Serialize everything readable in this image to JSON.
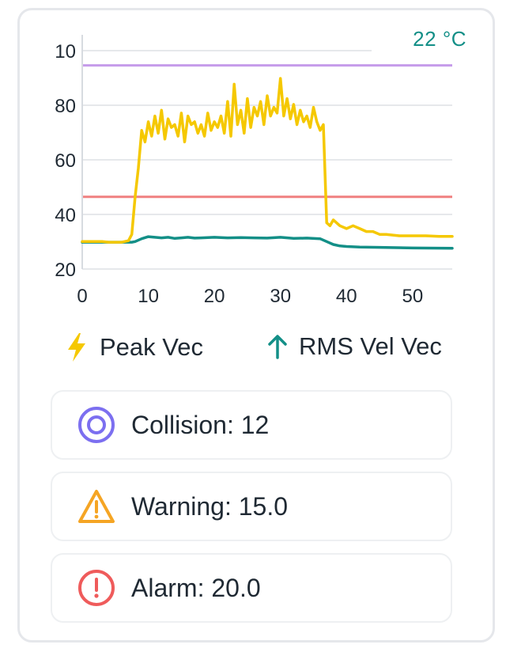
{
  "temperature": "22 °C",
  "legend": [
    {
      "label": "Peak Vec",
      "color": "#f5c800",
      "icon": "lightning-bolt-icon"
    },
    {
      "label": "RMS Vel Vec",
      "color": "#138f87",
      "icon": "arrow-up-icon"
    }
  ],
  "status": [
    {
      "text": "Collision: 12",
      "color": "#7c6ff0",
      "icon": "target-icon"
    },
    {
      "text": "Warning: 15.0",
      "color": "#f5a524",
      "icon": "warning-triangle-icon"
    },
    {
      "text": "Alarm: 20.0",
      "color": "#ef5b5b",
      "icon": "alert-circle-icon"
    }
  ],
  "chart_data": {
    "type": "line",
    "x_ticks": [
      "0",
      "10",
      "20",
      "30",
      "40",
      "50"
    ],
    "y_ticks": [
      "10",
      "80",
      "60",
      "40",
      "20"
    ],
    "xlim": [
      0,
      56
    ],
    "ylim": [
      20,
      100
    ],
    "threshold_lines": [
      {
        "value": 90.5,
        "color": "#c59bea"
      },
      {
        "value": 45,
        "color": "#f08080"
      }
    ],
    "series": [
      {
        "name": "Peak Vec",
        "color": "#f5c800",
        "x": [
          0,
          1,
          2,
          3,
          4,
          5,
          6,
          7,
          7.5,
          8,
          8.5,
          9,
          9.5,
          10,
          10.5,
          11,
          11.5,
          12,
          12.5,
          13,
          13.5,
          14,
          14.5,
          15,
          15.5,
          16,
          16.5,
          17,
          17.5,
          18,
          18.5,
          19,
          19.5,
          20,
          20.5,
          21,
          21.5,
          22,
          22.5,
          23,
          23.5,
          24,
          24.5,
          25,
          25.5,
          26,
          26.5,
          27,
          27.5,
          28,
          28.5,
          29,
          29.5,
          30,
          30.5,
          31,
          31.5,
          32,
          32.5,
          33,
          33.5,
          34,
          34.5,
          35,
          35.5,
          36,
          36.5,
          37,
          37.5,
          38,
          39,
          40,
          41,
          42,
          43,
          44,
          45,
          46,
          48,
          50,
          52,
          54,
          56
        ],
        "y": [
          29.5,
          29.5,
          29.5,
          29.5,
          29.3,
          29.3,
          29.3,
          29.8,
          32,
          45,
          55,
          68,
          64,
          71,
          66,
          73,
          67,
          75,
          65,
          72,
          69,
          70,
          66,
          74,
          64,
          73,
          70,
          71,
          67,
          70,
          66,
          74,
          68,
          71,
          69,
          73,
          67,
          78,
          66,
          84,
          70,
          75,
          67,
          79,
          69,
          76,
          73,
          78,
          70,
          80,
          73,
          76,
          74,
          86,
          73,
          79,
          72,
          77,
          70,
          75,
          71,
          73,
          69,
          76,
          71,
          68,
          70,
          36,
          35,
          37,
          35,
          34,
          35,
          34,
          33,
          33,
          32,
          32,
          31.5,
          31.5,
          31.5,
          31.3,
          31.3
        ]
      },
      {
        "name": "RMS Vel Vec",
        "color": "#138f87",
        "x": [
          0,
          5,
          6,
          7,
          7.5,
          8,
          9,
          10,
          11,
          12,
          13,
          14,
          15,
          16,
          17,
          18,
          20,
          22,
          24,
          26,
          28,
          30,
          32,
          34,
          36,
          37,
          38,
          39,
          40,
          42,
          45,
          50,
          56
        ],
        "y": [
          29.3,
          29.3,
          29.3,
          29.3,
          29.3,
          29.5,
          30.5,
          31.2,
          31,
          30.8,
          31,
          30.6,
          30.8,
          31,
          30.7,
          30.8,
          31,
          30.8,
          30.9,
          30.8,
          30.7,
          31,
          30.6,
          30.7,
          30.5,
          29.5,
          28.5,
          28,
          27.8,
          27.6,
          27.5,
          27.3,
          27.2
        ]
      }
    ]
  }
}
